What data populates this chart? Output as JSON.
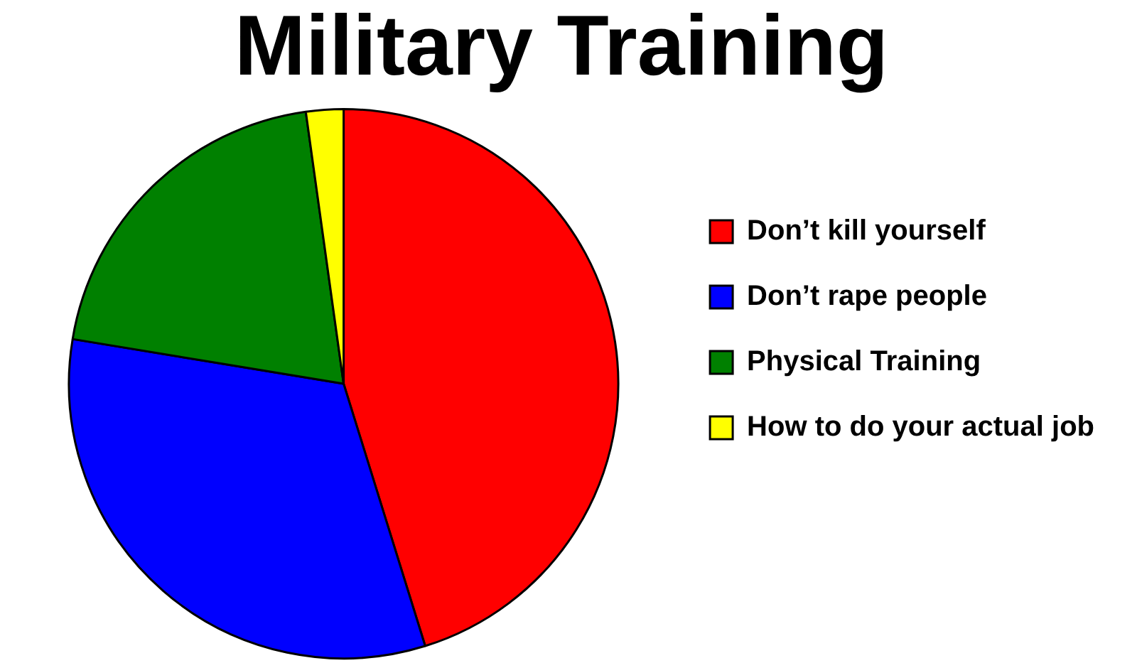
{
  "chart_data": {
    "type": "pie",
    "title": "Military Training",
    "categories": [
      "Don’t kill yourself",
      "Don’t rape people",
      "Physical Training",
      "How to do your actual job"
    ],
    "values": [
      45.2,
      32.4,
      20.2,
      2.2
    ],
    "colors": [
      "#ff0000",
      "#0000ff",
      "#008000",
      "#ffff00"
    ],
    "legend": "right"
  }
}
